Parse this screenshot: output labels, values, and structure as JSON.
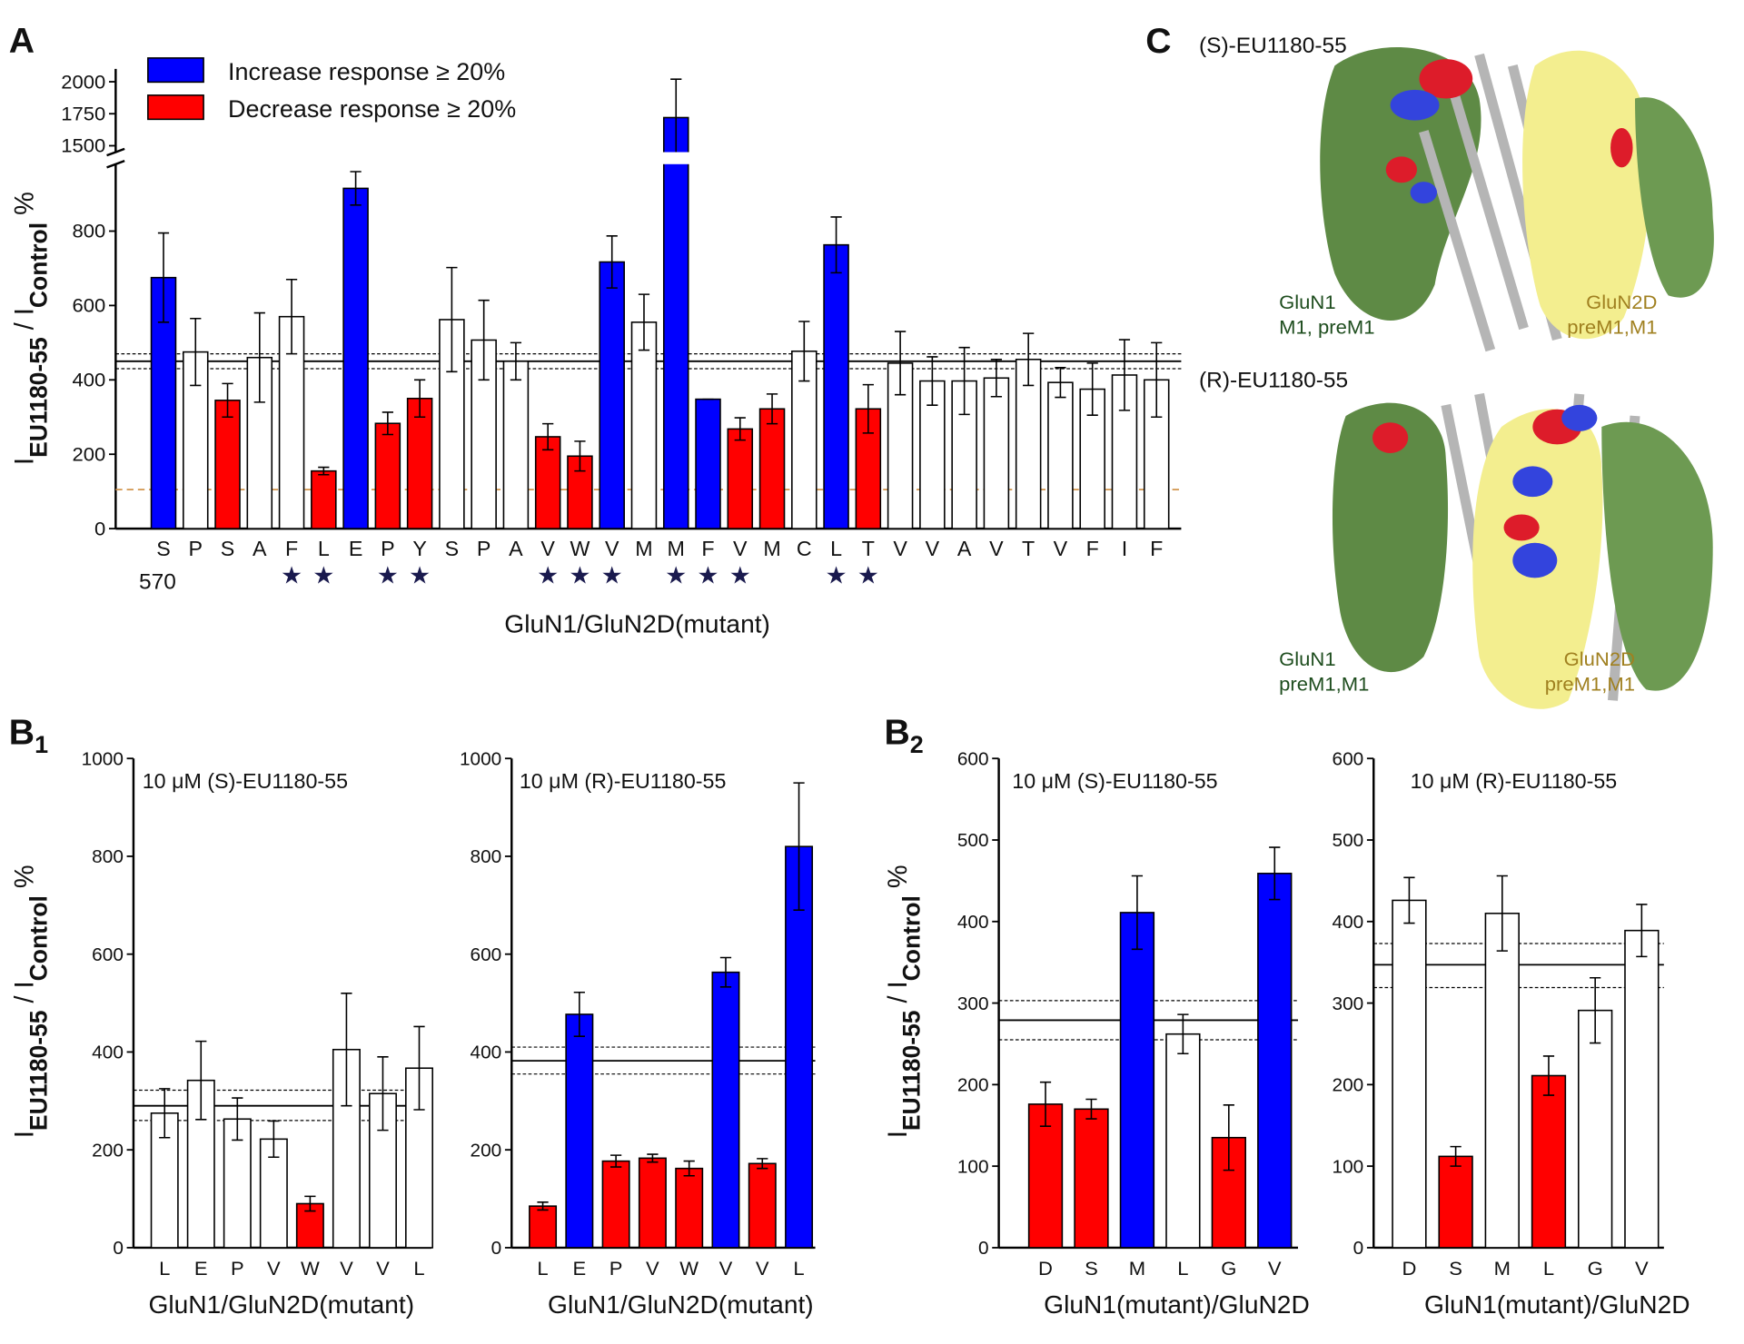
{
  "chart_data": [
    {
      "type": "bar",
      "panel_label": "A",
      "ylabel": [
        "I",
        "EU1180-55",
        " / I",
        "Control",
        " %"
      ],
      "xlabel": "GluN1/GluN2D(mutant)",
      "first_residue": "570",
      "legend": [
        {
          "name": "Increase response ≥ 20%",
          "color": "#0000ff"
        },
        {
          "name": "Decrease response ≥ 20%",
          "color": "#ff0000"
        }
      ],
      "categories": [
        "S",
        "P",
        "S",
        "A",
        "F",
        "L",
        "E",
        "P",
        "Y",
        "S",
        "P",
        "A",
        "V",
        "W",
        "V",
        "M",
        "M",
        "F",
        "V",
        "M",
        "C",
        "L",
        "T",
        "V",
        "V",
        "A",
        "V",
        "T",
        "V",
        "F",
        "I",
        "F"
      ],
      "values": [
        675,
        475,
        345,
        460,
        570,
        155,
        915,
        283,
        350,
        562,
        507,
        450,
        247,
        195,
        717,
        555,
        1720,
        348,
        268,
        322,
        477,
        763,
        322,
        445,
        397,
        397,
        405,
        455,
        393,
        375,
        413,
        400
      ],
      "errors": [
        120,
        90,
        45,
        120,
        100,
        10,
        45,
        30,
        50,
        140,
        107,
        50,
        35,
        40,
        70,
        75,
        300,
        0,
        30,
        40,
        80,
        75,
        65,
        85,
        65,
        90,
        50,
        70,
        40,
        70,
        95,
        100
      ],
      "colors": [
        "#0000ff",
        "#ffffff",
        "#ff0000",
        "#ffffff",
        "#ffffff",
        "#ff0000",
        "#0000ff",
        "#ff0000",
        "#ff0000",
        "#ffffff",
        "#ffffff",
        "#ffffff",
        "#ff0000",
        "#ff0000",
        "#0000ff",
        "#ffffff",
        "#0000ff",
        "#0000ff",
        "#ff0000",
        "#ff0000",
        "#ffffff",
        "#0000ff",
        "#ff0000",
        "#ffffff",
        "#ffffff",
        "#ffffff",
        "#ffffff",
        "#ffffff",
        "#ffffff",
        "#ffffff",
        "#ffffff",
        "#ffffff"
      ],
      "stars": [
        false,
        false,
        false,
        false,
        true,
        true,
        false,
        true,
        true,
        false,
        false,
        false,
        true,
        true,
        true,
        false,
        true,
        true,
        true,
        false,
        false,
        true,
        true,
        false,
        false,
        false,
        false,
        false,
        false,
        false,
        false,
        false
      ],
      "reference": {
        "mean": 450,
        "low": 430,
        "high": 470
      },
      "dashed_line": 105,
      "dashed_line_color": "#d2954e",
      "ylim": [
        0,
        2100
      ],
      "axis_break": [
        980,
        1450
      ],
      "yticks": [
        0,
        200,
        400,
        600,
        800,
        1500,
        1750,
        2000
      ]
    },
    {
      "type": "bar",
      "panel_label": "B",
      "panel_sub": "1",
      "ylabel": [
        "I",
        "EU1180-55",
        " / I",
        "Control",
        " %"
      ],
      "annotation": "10 μM (S)-EU1180-55",
      "xlabel": "GluN1/GluN2D(mutant)",
      "categories": [
        "L",
        "E",
        "P",
        "V",
        "W",
        "V",
        "V",
        "L"
      ],
      "values": [
        275,
        342,
        263,
        222,
        90,
        405,
        315,
        367
      ],
      "errors": [
        50,
        80,
        43,
        37,
        15,
        115,
        75,
        85
      ],
      "colors": [
        "#ffffff",
        "#ffffff",
        "#ffffff",
        "#ffffff",
        "#ff0000",
        "#ffffff",
        "#ffffff",
        "#ffffff"
      ],
      "reference": {
        "mean": 290,
        "low": 260,
        "high": 322
      },
      "ylim": [
        0,
        1000
      ],
      "yticks": [
        0,
        200,
        400,
        600,
        800,
        1000
      ]
    },
    {
      "type": "bar",
      "annotation": "10 μM (R)-EU1180-55",
      "xlabel": "GluN1/GluN2D(mutant)",
      "categories": [
        "L",
        "E",
        "P",
        "V",
        "W",
        "V",
        "V",
        "L"
      ],
      "values": [
        85,
        477,
        177,
        183,
        162,
        563,
        172,
        820
      ],
      "errors": [
        8,
        45,
        12,
        8,
        15,
        30,
        10,
        130
      ],
      "colors": [
        "#ff0000",
        "#0000ff",
        "#ff0000",
        "#ff0000",
        "#ff0000",
        "#0000ff",
        "#ff0000",
        "#0000ff"
      ],
      "reference": {
        "mean": 382,
        "low": 355,
        "high": 410
      },
      "ylim": [
        0,
        1000
      ],
      "yticks": [
        0,
        200,
        400,
        600,
        800,
        1000
      ]
    },
    {
      "type": "bar",
      "panel_label": "B",
      "panel_sub": "2",
      "ylabel": [
        "I",
        "EU1180-55",
        " / I",
        "Control",
        " %"
      ],
      "annotation": "10 μM (S)-EU1180-55",
      "xlabel": "GluN1(mutant)/GluN2D",
      "categories": [
        "D",
        "S",
        "M",
        "L",
        "G",
        "V"
      ],
      "values": [
        176,
        170,
        411,
        262,
        135,
        459
      ],
      "errors": [
        27,
        12,
        45,
        24,
        40,
        32
      ],
      "colors": [
        "#ff0000",
        "#ff0000",
        "#0000ff",
        "#ffffff",
        "#ff0000",
        "#0000ff"
      ],
      "reference": {
        "mean": 279,
        "low": 255,
        "high": 303
      },
      "ylim": [
        0,
        600
      ],
      "yticks": [
        0,
        100,
        200,
        300,
        400,
        500,
        600
      ]
    },
    {
      "type": "bar",
      "annotation": "10 μM (R)-EU1180-55",
      "xlabel": "GluN1(mutant)/GluN2D",
      "categories": [
        "D",
        "S",
        "M",
        "L",
        "G",
        "V"
      ],
      "values": [
        426,
        112,
        410,
        211,
        291,
        389
      ],
      "errors": [
        28,
        12,
        46,
        24,
        40,
        32
      ],
      "colors": [
        "#ffffff",
        "#ff0000",
        "#ffffff",
        "#ff0000",
        "#ffffff",
        "#ffffff"
      ],
      "reference": {
        "mean": 347,
        "low": 319,
        "high": 373
      },
      "ylim": [
        0,
        600
      ],
      "yticks": [
        0,
        100,
        200,
        300,
        400,
        500,
        600
      ]
    }
  ],
  "panel_c": {
    "label": "C",
    "structures": [
      {
        "title": "(S)-EU1180-55",
        "left": [
          "GluN1",
          "M1, preM1"
        ],
        "right": [
          "GluN2D",
          "preM1,M1"
        ]
      },
      {
        "title": "(R)-EU1180-55",
        "left": [
          "GluN1",
          "preM1,M1"
        ],
        "right": [
          "GluN2D",
          "preM1,M1"
        ]
      }
    ]
  }
}
